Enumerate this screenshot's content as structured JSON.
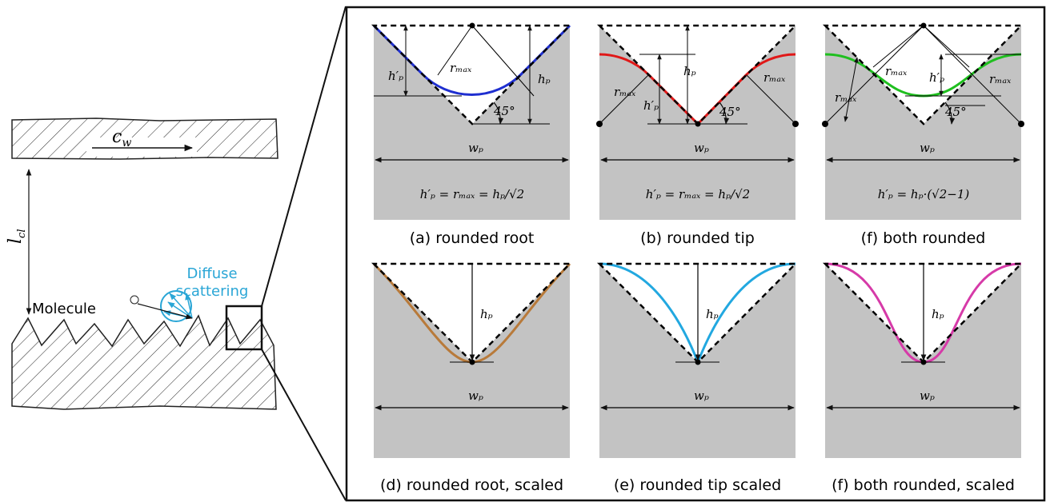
{
  "left": {
    "velocity": {
      "main": "c",
      "sub": "w"
    },
    "distance": {
      "main": "l",
      "sub": "cl"
    },
    "molecule": "Molecule",
    "scattering": [
      "Diffuse",
      "scattering"
    ]
  },
  "panels": [
    {
      "caption": "(a) rounded root",
      "labels": [
        "h′ₚ",
        "rₘₐₓ",
        "hₚ",
        "45°",
        "wₚ"
      ],
      "formula": "h′ₚ = rₘₐₓ = hₚ/√2"
    },
    {
      "caption": "(b) rounded tip",
      "labels": [
        "hₚ",
        "rₘₐₓ",
        "h′ₚ",
        "rₘₐₓ",
        "45°",
        "wₚ"
      ],
      "formula": "h′ₚ = rₘₐₓ = hₚ/√2"
    },
    {
      "caption": "(f) both rounded",
      "labels": [
        "rₘₐₓ",
        "rₘₐₓ",
        "h′ₚ",
        "rₘₐₓ",
        "45°",
        "wₚ"
      ],
      "formula": "h′ₚ = hₚ·(√2−1)"
    },
    {
      "caption": "(d) rounded root, scaled",
      "labels": [
        "hₚ",
        "wₚ"
      ]
    },
    {
      "caption": "(e) rounded tip scaled",
      "labels": [
        "hₚ",
        "wₚ"
      ]
    },
    {
      "caption": "(f) both rounded, scaled",
      "labels": [
        "hₚ",
        "wₚ"
      ]
    }
  ]
}
